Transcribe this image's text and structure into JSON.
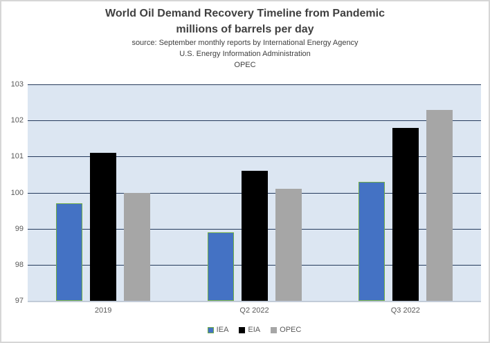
{
  "header": {
    "title_line1": "World Oil Demand Recovery Timeline from Pandemic",
    "title_line2": "millions of barrels per day",
    "source_line1": "source: September  monthly reports by International Energy Agency",
    "source_line2": "U.S. Energy  Information Administration",
    "source_line3": "OPEC"
  },
  "chart_data": {
    "type": "bar",
    "categories": [
      "2019",
      "Q2 2022",
      "Q3 2022"
    ],
    "series": [
      {
        "name": "IEA",
        "color": "#4472c4",
        "border_color": "#70ad47",
        "values": [
          99.7,
          98.9,
          100.3
        ]
      },
      {
        "name": "EIA",
        "color": "#000000",
        "border_color": null,
        "values": [
          101.1,
          100.6,
          101.8
        ]
      },
      {
        "name": "OPEC",
        "color": "#a6a6a6",
        "border_color": null,
        "values": [
          100.0,
          100.1,
          102.3
        ]
      }
    ],
    "title": "World Oil Demand Recovery Timeline from Pandemic",
    "subtitle": "millions of barrels per day",
    "xlabel": "",
    "ylabel": "",
    "ylim": [
      97,
      103
    ],
    "yticks": [
      97,
      98,
      99,
      100,
      101,
      102,
      103
    ],
    "grid": true,
    "legend_position": "bottom",
    "colors": {
      "plot_background": "#dce6f2",
      "gridline": "#24395b",
      "axis_line": "#c2cbd8",
      "title_text": "#404040",
      "tick_text": "#595959"
    }
  }
}
